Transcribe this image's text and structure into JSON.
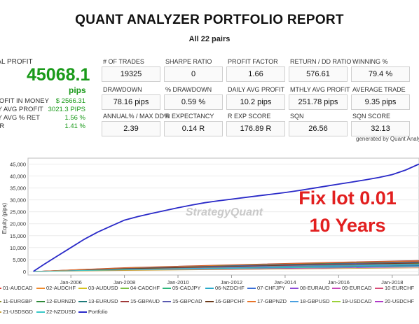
{
  "report": {
    "title": "QUANT ANALYZER PORTFOLIO REPORT",
    "subtitle": "All 22 pairs",
    "generated_by": "generated by Quant Analyzer"
  },
  "summary": {
    "total_profit_label": "TAL PROFIT",
    "total_profit_value": "45068.1",
    "total_profit_unit": "pips",
    "rows": [
      {
        "label": "ROFIT IN MONEY",
        "value": "$ 2566.31"
      },
      {
        "label": "LY AVG PROFIT",
        "value": "3021.3 PIPS"
      },
      {
        "label": "LY AVG % RET",
        "value": "1.56 %"
      },
      {
        "label": "GR",
        "value": "1.41 %"
      }
    ]
  },
  "stats": [
    {
      "label": "# OF TRADES",
      "value": "19325"
    },
    {
      "label": "SHARPE RATIO",
      "value": "0"
    },
    {
      "label": "PROFIT FACTOR",
      "value": "1.66"
    },
    {
      "label": "RETURN / DD RATIO",
      "value": "576.61"
    },
    {
      "label": "WINNING %",
      "value": "79.4 %"
    },
    {
      "label": "DRAWDOWN",
      "value": "78.16 pips"
    },
    {
      "label": "% DRAWDOWN",
      "value": "0.59 %"
    },
    {
      "label": "DAILY AVG PROFIT",
      "value": "10.2 pips"
    },
    {
      "label": "MTHLY AVG PROFIT",
      "value": "251.78 pips"
    },
    {
      "label": "AVERAGE TRADE",
      "value": "9.35 pips"
    },
    {
      "label": "ANNUAL% / MAX DD%",
      "value": "2.39"
    },
    {
      "label": "R EXPECTANCY",
      "value": "0.14 R"
    },
    {
      "label": "R EXP SCORE",
      "value": "176.89 R"
    },
    {
      "label": "SQN",
      "value": "26.56"
    },
    {
      "label": "SQN SCORE",
      "value": "32.13"
    }
  ],
  "overlay": {
    "watermark": "StrategyQuant",
    "line1": "Fix lot 0.01",
    "line2": "10 Years"
  },
  "colors": {
    "profit_green": "#1a9a1a",
    "portfolio_line": "#2a2ac8",
    "overlay_red": "#e21f1f"
  },
  "chart_data": {
    "type": "line",
    "title": "",
    "xlabel": "",
    "ylabel": "Equity (pips)",
    "yticks": [
      "0",
      "5,000",
      "10,000",
      "15,000",
      "20,000",
      "25,000",
      "30,000",
      "35,000",
      "40,000",
      "45,000"
    ],
    "ylim": [
      -1500,
      47500
    ],
    "xlim": [
      2004.4,
      2019.0
    ],
    "xticks": [
      {
        "label": "Jan-2006",
        "x": 2006.0
      },
      {
        "label": "Jan-2008",
        "x": 2008.0
      },
      {
        "label": "Jan-2010",
        "x": 2010.0
      },
      {
        "label": "Jan-2012",
        "x": 2012.0
      },
      {
        "label": "Jan-2014",
        "x": 2014.0
      },
      {
        "label": "Jan-2016",
        "x": 2016.0
      },
      {
        "label": "Jan-2018",
        "x": 2018.0
      }
    ],
    "legend_position": "bottom",
    "series": [
      {
        "name": "01-AUDCAD",
        "color": "#e0433a",
        "x": [
          2004.6,
          2008,
          2012,
          2016,
          2019
        ],
        "y": [
          0,
          1500,
          2600,
          3600,
          4200
        ]
      },
      {
        "name": "02-AUDCHF",
        "color": "#f08a2a",
        "x": [
          2004.6,
          2008,
          2012,
          2016,
          2019
        ],
        "y": [
          0,
          1200,
          2200,
          3000,
          3600
        ]
      },
      {
        "name": "03-AUDUSD",
        "color": "#d6c21b",
        "x": [
          2004.6,
          2008,
          2012,
          2016,
          2019
        ],
        "y": [
          0,
          900,
          1700,
          2500,
          3000
        ]
      },
      {
        "name": "04-CADCHF",
        "color": "#7ac143",
        "x": [
          2004.6,
          2008,
          2012,
          2016,
          2019
        ],
        "y": [
          0,
          1100,
          2000,
          2800,
          3300
        ]
      },
      {
        "name": "05-CADJPY",
        "color": "#2bb57a",
        "x": [
          2004.6,
          2008,
          2012,
          2016,
          2019
        ],
        "y": [
          0,
          800,
          1500,
          2200,
          2700
        ]
      },
      {
        "name": "06-NZDCHF",
        "color": "#27a9c9",
        "x": [
          2004.6,
          2008,
          2012,
          2016,
          2019
        ],
        "y": [
          0,
          1000,
          1900,
          2600,
          3100
        ]
      },
      {
        "name": "07-CHFJPY",
        "color": "#3a6fd8",
        "x": [
          2004.6,
          2008,
          2012,
          2016,
          2019
        ],
        "y": [
          0,
          700,
          1400,
          2000,
          2500
        ]
      },
      {
        "name": "08-EURAUD",
        "color": "#8c4ad6",
        "x": [
          2004.6,
          2008,
          2012,
          2016,
          2019
        ],
        "y": [
          0,
          1300,
          2400,
          3300,
          3900
        ]
      },
      {
        "name": "09-EURCAD",
        "color": "#c848b8",
        "x": [
          2004.6,
          2008,
          2012,
          2016,
          2019
        ],
        "y": [
          0,
          1000,
          2000,
          2900,
          3500
        ]
      },
      {
        "name": "10-EURCHF",
        "color": "#d94d79",
        "x": [
          2004.6,
          2008,
          2012,
          2016,
          2019
        ],
        "y": [
          0,
          600,
          1200,
          1800,
          2200
        ]
      },
      {
        "name": "11-EURGBP",
        "color": "#8a8a2a",
        "x": [
          2004.6,
          2008,
          2012,
          2016,
          2019
        ],
        "y": [
          0,
          900,
          1700,
          2400,
          2900
        ]
      },
      {
        "name": "12-EURNZD",
        "color": "#2f8a3a",
        "x": [
          2004.6,
          2008,
          2012,
          2016,
          2019
        ],
        "y": [
          0,
          1400,
          2500,
          3400,
          4000
        ]
      },
      {
        "name": "13-EURUSD",
        "color": "#1f7a7a",
        "x": [
          2004.6,
          2008,
          2012,
          2016,
          2019
        ],
        "y": [
          0,
          700,
          1300,
          1900,
          2300
        ]
      },
      {
        "name": "15-GBPAUD",
        "color": "#a03a3a",
        "x": [
          2004.6,
          2008,
          2012,
          2016,
          2019
        ],
        "y": [
          0,
          1600,
          2800,
          3900,
          4600
        ]
      },
      {
        "name": "15-GBPCAD",
        "color": "#5a5ab0",
        "x": [
          2004.6,
          2008,
          2012,
          2016,
          2019
        ],
        "y": [
          0,
          1200,
          2300,
          3200,
          3800
        ]
      },
      {
        "name": "16-GBPCHF",
        "color": "#6a3a1a",
        "x": [
          2004.6,
          2008,
          2012,
          2016,
          2019
        ],
        "y": [
          0,
          1100,
          2100,
          3000,
          3500
        ]
      },
      {
        "name": "17-GBPNZD",
        "color": "#e8742a",
        "x": [
          2004.6,
          2008,
          2012,
          2016,
          2019
        ],
        "y": [
          0,
          1500,
          2700,
          3800,
          4400
        ]
      },
      {
        "name": "18-GBPUSD",
        "color": "#4aa0e0",
        "x": [
          2004.6,
          2008,
          2012,
          2016,
          2019
        ],
        "y": [
          0,
          800,
          1600,
          2300,
          2800
        ]
      },
      {
        "name": "19-USDCAD",
        "color": "#9bd13a",
        "x": [
          2004.6,
          2008,
          2012,
          2016,
          2019
        ],
        "y": [
          0,
          600,
          1100,
          1700,
          2100
        ]
      },
      {
        "name": "20-USDCHF",
        "color": "#b03ac8",
        "x": [
          2004.6,
          2008,
          2012,
          2016,
          2019
        ],
        "y": [
          0,
          500,
          1000,
          1500,
          1900
        ]
      },
      {
        "name": "21-USDSGD",
        "color": "#c8a03a",
        "x": [
          2004.6,
          2008,
          2012,
          2016,
          2019
        ],
        "y": [
          0,
          400,
          800,
          1200,
          1500
        ]
      },
      {
        "name": "22-NZDUSD",
        "color": "#3ac8c8",
        "x": [
          2004.6,
          2008,
          2012,
          2016,
          2019
        ],
        "y": [
          0,
          700,
          1300,
          1800,
          2200
        ]
      },
      {
        "name": "Portfolio",
        "color": "#2a2ac8",
        "x": [
          2004.6,
          2005.0,
          2005.5,
          2006.0,
          2006.5,
          2007.0,
          2007.5,
          2008.0,
          2008.5,
          2009.0,
          2009.5,
          2010.0,
          2010.5,
          2011.0,
          2011.5,
          2012.0,
          2012.5,
          2013.0,
          2013.5,
          2014.0,
          2014.5,
          2015.0,
          2015.5,
          2016.0,
          2016.5,
          2017.0,
          2017.5,
          2018.0,
          2018.5,
          2019.0
        ],
        "y": [
          0,
          3000,
          6500,
          10000,
          13500,
          16500,
          19000,
          21500,
          23000,
          24300,
          25500,
          26700,
          27800,
          28800,
          29600,
          30300,
          31000,
          31700,
          32400,
          33100,
          33900,
          34800,
          35700,
          36600,
          37500,
          38400,
          39400,
          40600,
          42500,
          45000
        ]
      }
    ]
  }
}
